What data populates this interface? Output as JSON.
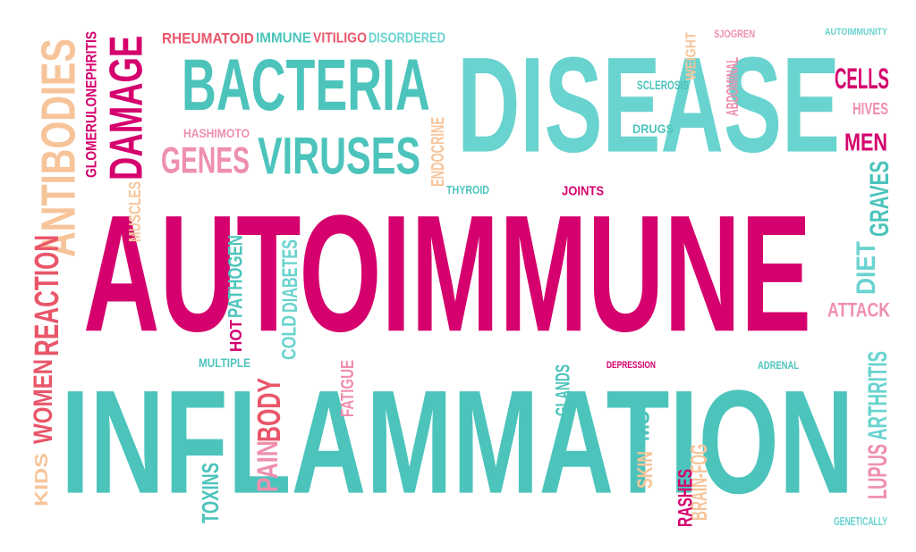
{
  "colors": {
    "magenta": "#d5006d",
    "teal": "#4cc4bc",
    "teal_light": "#69d3cf",
    "peach": "#f7c49a",
    "pink": "#ef8fae",
    "coral": "#e9566a",
    "background": "#ffffff"
  },
  "words": [
    {
      "text": "RHEUMATOID",
      "color": "coral",
      "vertical": false
    },
    {
      "text": "IMMUNE",
      "color": "teal",
      "vertical": false
    },
    {
      "text": "VITILIGO",
      "color": "coral",
      "vertical": false
    },
    {
      "text": "DISORDERED",
      "color": "teal_light",
      "vertical": false
    },
    {
      "text": "SJOGREN",
      "color": "pink",
      "vertical": false
    },
    {
      "text": "AUTOIMMUNITY",
      "color": "teal_light",
      "vertical": false
    },
    {
      "text": "BACTERIA",
      "color": "teal",
      "vertical": false
    },
    {
      "text": "DISEASE",
      "color": "teal_light",
      "vertical": false
    },
    {
      "text": "CELLS",
      "color": "magenta",
      "vertical": false
    },
    {
      "text": "SCLEROSIS",
      "color": "teal",
      "vertical": false
    },
    {
      "text": "HIVES",
      "color": "pink",
      "vertical": false
    },
    {
      "text": "HASHIMOTO",
      "color": "pink",
      "vertical": false
    },
    {
      "text": "GENES",
      "color": "pink",
      "vertical": false
    },
    {
      "text": "VIRUSES",
      "color": "teal",
      "vertical": false
    },
    {
      "text": "DRUGS",
      "color": "teal",
      "vertical": false
    },
    {
      "text": "MEN",
      "color": "magenta",
      "vertical": false
    },
    {
      "text": "THYROID",
      "color": "teal",
      "vertical": false
    },
    {
      "text": "JOINTS",
      "color": "magenta",
      "vertical": false
    },
    {
      "text": "AUTOIMMUNE",
      "color": "magenta",
      "vertical": false
    },
    {
      "text": "ATTACK",
      "color": "pink",
      "vertical": false
    },
    {
      "text": "MULTIPLE",
      "color": "teal",
      "vertical": false
    },
    {
      "text": "DEPRESSION",
      "color": "magenta",
      "vertical": false
    },
    {
      "text": "ADRENAL",
      "color": "teal",
      "vertical": false
    },
    {
      "text": "INFLAMMATION",
      "color": "teal",
      "vertical": false
    },
    {
      "text": "GENETICALLY",
      "color": "teal_light",
      "vertical": false
    },
    {
      "text": "ANTIBODIES",
      "color": "peach",
      "vertical": true
    },
    {
      "text": "GLOMERULONEPHRITIS",
      "color": "magenta",
      "vertical": true
    },
    {
      "text": "DAMAGE",
      "color": "magenta",
      "vertical": true
    },
    {
      "text": "MUSCLES",
      "color": "peach",
      "vertical": true
    },
    {
      "text": "REACTION",
      "color": "coral",
      "vertical": true
    },
    {
      "text": "WOMEN",
      "color": "coral",
      "vertical": true
    },
    {
      "text": "KIDS",
      "color": "peach",
      "vertical": true
    },
    {
      "text": "ENDOCRINE",
      "color": "peach",
      "vertical": true
    },
    {
      "text": "WEIGHT",
      "color": "peach",
      "vertical": true
    },
    {
      "text": "ABDOMINAL",
      "color": "pink",
      "vertical": true
    },
    {
      "text": "GRAVES",
      "color": "teal",
      "vertical": true
    },
    {
      "text": "DIET",
      "color": "teal_light",
      "vertical": true
    },
    {
      "text": "PATHOGEN",
      "color": "teal",
      "vertical": true
    },
    {
      "text": "HOT",
      "color": "magenta",
      "vertical": true
    },
    {
      "text": "DIABETES",
      "color": "teal_light",
      "vertical": true
    },
    {
      "text": "COLD",
      "color": "teal_light",
      "vertical": true
    },
    {
      "text": "BODY",
      "color": "coral",
      "vertical": true
    },
    {
      "text": "PAIN",
      "color": "pink",
      "vertical": true
    },
    {
      "text": "FATIGUE",
      "color": "pink",
      "vertical": true
    },
    {
      "text": "TOXINS",
      "color": "teal",
      "vertical": true
    },
    {
      "text": "GLANDS",
      "color": "teal",
      "vertical": true
    },
    {
      "text": "MS",
      "color": "teal",
      "vertical": true
    },
    {
      "text": "SKIN",
      "color": "peach",
      "vertical": true
    },
    {
      "text": "BRAIN-FOG",
      "color": "peach",
      "vertical": true
    },
    {
      "text": "RASHES",
      "color": "magenta",
      "vertical": true
    },
    {
      "text": "ARTHRITIS",
      "color": "teal_light",
      "vertical": true
    },
    {
      "text": "LUPUS",
      "color": "pink",
      "vertical": true
    }
  ]
}
